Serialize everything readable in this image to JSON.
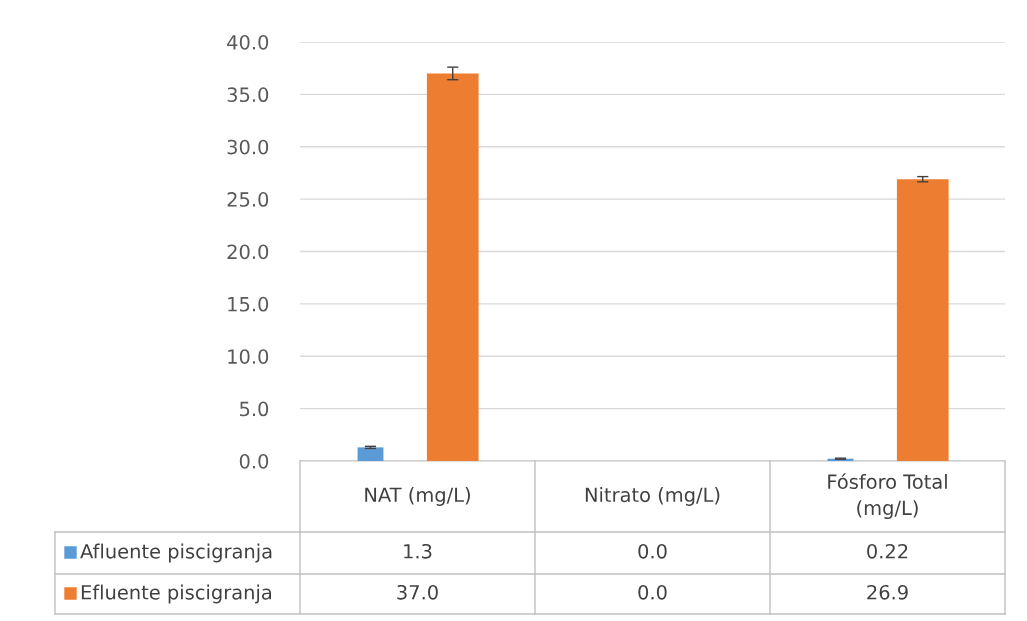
{
  "chart_data": {
    "type": "bar",
    "categories": [
      "NAT (mg/L)",
      "Nitrato (mg/L)",
      "Fósforo Total\n(mg/L)"
    ],
    "series": [
      {
        "name": "Afluente piscigranja",
        "color": "#5b9bd5",
        "values": [
          1.3,
          0.0,
          0.22
        ],
        "errors": [
          0.1,
          null,
          0.05
        ],
        "value_labels": [
          "1.3",
          "0.0",
          "0.22"
        ]
      },
      {
        "name": "Efluente piscigranja",
        "color": "#ed7d31",
        "values": [
          37.0,
          0.0,
          26.9
        ],
        "errors": [
          0.6,
          null,
          0.25
        ],
        "value_labels": [
          "37.0",
          "0.0",
          "26.9"
        ]
      }
    ],
    "ylim": [
      0,
      40
    ],
    "yticks": [
      {
        "value": 0,
        "label": "0.0"
      },
      {
        "value": 5,
        "label": "5.0"
      },
      {
        "value": 10,
        "label": "10.0"
      },
      {
        "value": 15,
        "label": "15.0"
      },
      {
        "value": 20,
        "label": "20.0"
      },
      {
        "value": 25,
        "label": "25.0"
      },
      {
        "value": 30,
        "label": "30.0"
      },
      {
        "value": 35,
        "label": "35.0"
      },
      {
        "value": 40,
        "label": "40.0"
      }
    ],
    "grid": "y",
    "legend": "bottom"
  }
}
